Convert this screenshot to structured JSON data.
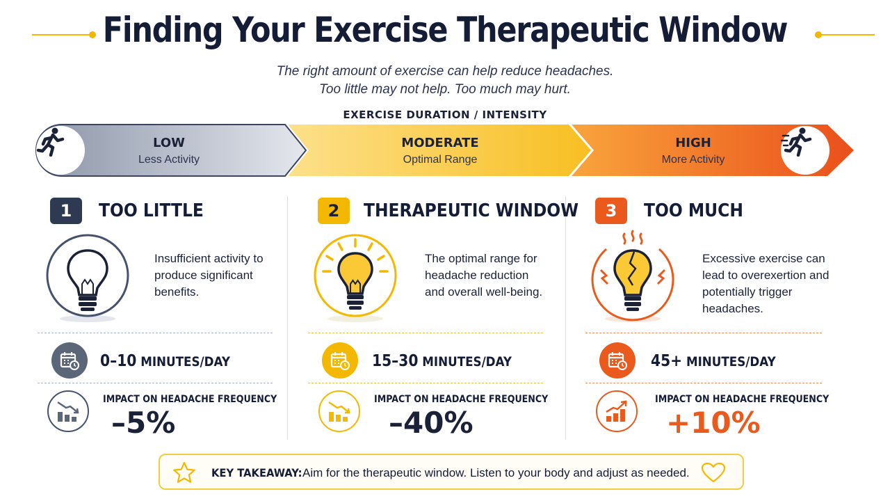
{
  "title": "Finding Your Exercise Therapeutic Window",
  "subtitle": {
    "line1": "The right amount of exercise can help reduce headaches.",
    "line2": "Too little may not help. Too much may hurt."
  },
  "scale": {
    "label": "EXERCISE DURATION / INTENSITY",
    "segments": [
      {
        "title": "LOW",
        "sub": "Less Activity"
      },
      {
        "title": "MODERATE",
        "sub": "Optimal Range"
      },
      {
        "title": "HIGH",
        "sub": "More Activity"
      }
    ]
  },
  "columns": [
    {
      "number": "1",
      "title": "TOO LITTLE",
      "desc": [
        "Insufficient activity to",
        "produce significant",
        "benefits."
      ],
      "minutes_num": "0–10",
      "minutes_unit": " MINUTES/DAY",
      "impact_label": "IMPACT ON HEADACHE FREQUENCY",
      "impact_value": "–5%"
    },
    {
      "number": "2",
      "title": "THERAPEUTIC WINDOW",
      "desc": [
        "The optimal range for",
        "headache reduction",
        "and overall well-being."
      ],
      "minutes_num": "15–30",
      "minutes_unit": " MINUTES/DAY",
      "impact_label": "IMPACT ON HEADACHE FREQUENCY",
      "impact_value": "–40%"
    },
    {
      "number": "3",
      "title": "TOO MUCH",
      "desc": [
        "Excessive exercise can",
        "lead to overexertion and",
        "potentially trigger",
        "headaches."
      ],
      "minutes_num": "45+",
      "minutes_unit": " MINUTES/DAY",
      "impact_label": "IMPACT ON HEADACHE FREQUENCY",
      "impact_value": "+10%"
    }
  ],
  "takeaway": {
    "label": "KEY TAKEAWAY:",
    "text": "Aim for the therapeutic window. Listen to your body and adjust as needed."
  },
  "colors": {
    "navy": "#2e3a52",
    "yellow": "#f5b800",
    "orange": "#ea5a1c",
    "low_bar": "#b3b9c7",
    "mid_bar": "#f9c93a",
    "high_bar": "#f07a2a"
  },
  "icons": {
    "low": "running-person-icon",
    "high": "sprinting-person-icon",
    "bulb_off": "lightbulb-off-icon",
    "bulb_glow": "lightbulb-glowing-icon",
    "bulb_cracked": "lightbulb-cracked-icon",
    "calendar": "calendar-clock-icon",
    "chart_down": "chart-decrease-icon",
    "chart_up": "chart-increase-icon",
    "star": "star-icon",
    "heart": "heart-icon"
  }
}
